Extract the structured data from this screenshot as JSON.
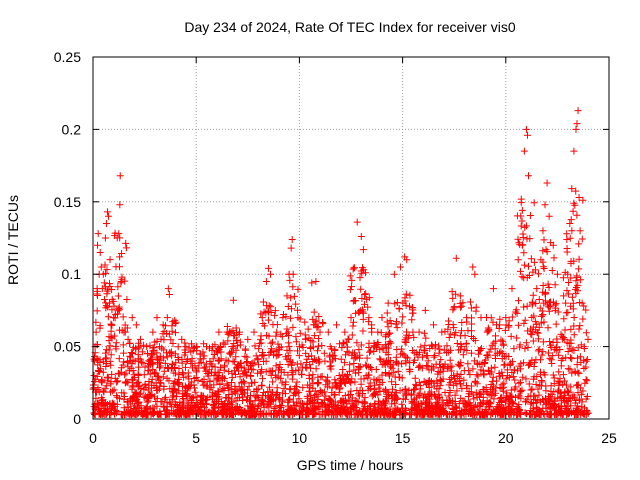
{
  "chart_data": {
    "type": "scatter",
    "title": "Day 234 of 2024, Rate Of TEC Index for receiver vis0",
    "xlabel": "GPS time / hours",
    "ylabel": "ROTI / TECUs",
    "xlim": [
      0,
      25
    ],
    "ylim": [
      0,
      0.25
    ],
    "xticks": [
      0,
      5,
      10,
      15,
      20,
      25
    ],
    "xtick_labels": [
      "0",
      "5",
      "10",
      "15",
      "20",
      "25"
    ],
    "yticks": [
      0,
      0.05,
      0.1,
      0.15,
      0.2,
      0.25
    ],
    "ytick_labels": [
      "0",
      "0.05",
      "0.1",
      "0.15",
      "0.2",
      "0.25"
    ],
    "grid": true,
    "marker": "plus",
    "marker_color": "#ff0000",
    "series": [
      {
        "name": "vis0",
        "note": "dense cloud of ROTI samples (representative subset)",
        "points": [
          [
            0.05,
            0.03
          ],
          [
            0.1,
            0.05
          ],
          [
            0.15,
            0.06
          ],
          [
            0.2,
            0.09
          ],
          [
            0.22,
            0.12
          ],
          [
            0.25,
            0.128
          ],
          [
            0.3,
            0.1
          ],
          [
            0.35,
            0.115
          ],
          [
            0.4,
            0.105
          ],
          [
            0.45,
            0.09
          ],
          [
            0.5,
            0.1
          ],
          [
            0.55,
            0.094
          ],
          [
            0.6,
            0.125
          ],
          [
            0.65,
            0.135
          ],
          [
            0.7,
            0.143
          ],
          [
            0.75,
            0.14
          ],
          [
            0.8,
            0.08
          ],
          [
            0.9,
            0.065
          ],
          [
            1.0,
            0.07
          ],
          [
            1.1,
            0.05
          ],
          [
            1.25,
            0.128
          ],
          [
            1.3,
            0.148
          ],
          [
            1.32,
            0.168
          ],
          [
            1.35,
            0.094
          ],
          [
            1.5,
            0.06
          ],
          [
            1.7,
            0.055
          ],
          [
            1.9,
            0.07
          ],
          [
            2.1,
            0.065
          ],
          [
            2.3,
            0.055
          ],
          [
            2.6,
            0.05
          ],
          [
            2.9,
            0.06
          ],
          [
            3.1,
            0.07
          ],
          [
            3.4,
            0.065
          ],
          [
            3.6,
            0.07
          ],
          [
            3.65,
            0.09
          ],
          [
            3.7,
            0.086
          ],
          [
            4.0,
            0.045
          ],
          [
            4.3,
            0.055
          ],
          [
            4.5,
            0.05
          ],
          [
            4.8,
            0.04
          ],
          [
            5.2,
            0.045
          ],
          [
            5.5,
            0.05
          ],
          [
            5.8,
            0.05
          ],
          [
            6.1,
            0.06
          ],
          [
            6.5,
            0.06
          ],
          [
            6.8,
            0.082
          ],
          [
            7.1,
            0.06
          ],
          [
            7.5,
            0.055
          ],
          [
            7.8,
            0.06
          ],
          [
            8.2,
            0.07
          ],
          [
            8.4,
            0.095
          ],
          [
            8.5,
            0.104
          ],
          [
            8.6,
            0.1
          ],
          [
            8.9,
            0.06
          ],
          [
            9.2,
            0.07
          ],
          [
            9.4,
            0.085
          ],
          [
            9.5,
            0.1
          ],
          [
            9.6,
            0.118
          ],
          [
            9.65,
            0.124
          ],
          [
            9.7,
            0.1
          ],
          [
            10.0,
            0.05
          ],
          [
            10.3,
            0.055
          ],
          [
            10.6,
            0.094
          ],
          [
            10.8,
            0.095
          ],
          [
            11.0,
            0.06
          ],
          [
            11.4,
            0.06
          ],
          [
            11.8,
            0.065
          ],
          [
            12.2,
            0.06
          ],
          [
            12.5,
            0.07
          ],
          [
            12.8,
            0.136
          ],
          [
            13.0,
            0.126
          ],
          [
            13.1,
            0.117
          ],
          [
            13.2,
            0.101
          ],
          [
            13.5,
            0.065
          ],
          [
            13.8,
            0.06
          ],
          [
            14.0,
            0.07
          ],
          [
            14.3,
            0.08
          ],
          [
            14.6,
            0.1
          ],
          [
            14.9,
            0.105
          ],
          [
            15.1,
            0.112
          ],
          [
            15.2,
            0.11
          ],
          [
            15.5,
            0.06
          ],
          [
            15.8,
            0.06
          ],
          [
            16.1,
            0.075
          ],
          [
            16.5,
            0.065
          ],
          [
            16.9,
            0.06
          ],
          [
            17.4,
            0.088
          ],
          [
            17.6,
            0.111
          ],
          [
            17.8,
            0.085
          ],
          [
            18.1,
            0.07
          ],
          [
            18.4,
            0.105
          ],
          [
            18.5,
            0.1
          ],
          [
            18.8,
            0.07
          ],
          [
            19.1,
            0.06
          ],
          [
            19.4,
            0.09
          ],
          [
            19.7,
            0.065
          ],
          [
            20.0,
            0.07
          ],
          [
            20.3,
            0.09
          ],
          [
            20.6,
            0.11
          ],
          [
            20.8,
            0.12
          ],
          [
            20.9,
            0.185
          ],
          [
            21.0,
            0.2
          ],
          [
            21.05,
            0.196
          ],
          [
            21.1,
            0.168
          ],
          [
            21.3,
            0.08
          ],
          [
            21.5,
            0.09
          ],
          [
            21.7,
            0.11
          ],
          [
            21.8,
            0.13
          ],
          [
            21.9,
            0.148
          ],
          [
            22.0,
            0.163
          ],
          [
            22.1,
            0.14
          ],
          [
            22.3,
            0.12
          ],
          [
            22.5,
            0.1
          ],
          [
            22.8,
            0.085
          ],
          [
            22.9,
            0.08
          ],
          [
            23.0,
            0.1
          ],
          [
            23.1,
            0.135
          ],
          [
            23.2,
            0.13
          ],
          [
            23.3,
            0.185
          ],
          [
            23.4,
            0.2
          ],
          [
            23.45,
            0.204
          ],
          [
            23.5,
            0.213
          ],
          [
            23.55,
            0.153
          ],
          [
            23.6,
            0.13
          ],
          [
            23.7,
            0.08
          ],
          [
            23.8,
            0.05
          ],
          [
            23.9,
            0.04
          ]
        ]
      }
    ]
  }
}
